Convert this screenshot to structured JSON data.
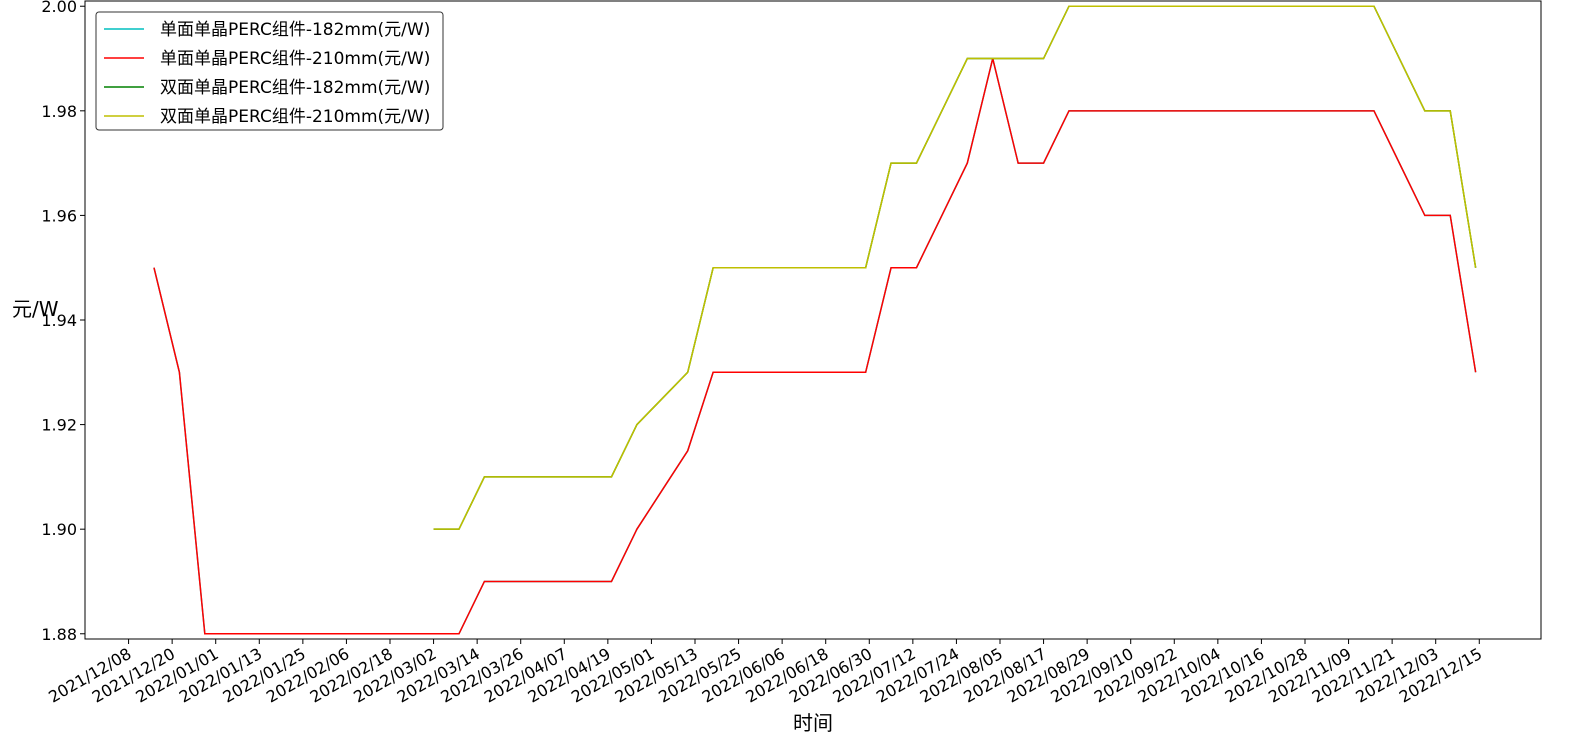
{
  "chart_data": {
    "type": "line",
    "xlabel": "时间",
    "ylabel": "元/W",
    "x": [
      "2021/12/15",
      "2021/12/22",
      "2021/12/29",
      "2022/01/05",
      "2022/01/12",
      "2022/01/19",
      "2022/01/26",
      "2022/02/02",
      "2022/02/09",
      "2022/02/16",
      "2022/02/23",
      "2022/03/02",
      "2022/03/09",
      "2022/03/16",
      "2022/03/23",
      "2022/03/30",
      "2022/04/06",
      "2022/04/13",
      "2022/04/20",
      "2022/04/27",
      "2022/05/04",
      "2022/05/11",
      "2022/05/18",
      "2022/05/25",
      "2022/06/01",
      "2022/06/08",
      "2022/06/15",
      "2022/06/22",
      "2022/06/29",
      "2022/07/06",
      "2022/07/13",
      "2022/07/20",
      "2022/07/27",
      "2022/08/03",
      "2022/08/10",
      "2022/08/17",
      "2022/08/24",
      "2022/08/31",
      "2022/09/07",
      "2022/09/14",
      "2022/09/21",
      "2022/09/28",
      "2022/10/05",
      "2022/10/12",
      "2022/10/19",
      "2022/10/26",
      "2022/11/02",
      "2022/11/09",
      "2022/11/16",
      "2022/11/23",
      "2022/11/30",
      "2022/12/07",
      "2022/12/14"
    ],
    "series": [
      {
        "name": "单面单晶PERC组件-182mm(元/W)",
        "color": "#00bfbf",
        "values": [
          1.95,
          1.93,
          1.88,
          1.88,
          1.88,
          1.88,
          1.88,
          1.88,
          1.88,
          1.88,
          1.88,
          1.88,
          1.88,
          1.89,
          1.89,
          1.89,
          1.89,
          1.89,
          1.89,
          1.9,
          1.9075,
          1.915,
          1.93,
          1.93,
          1.93,
          1.93,
          1.93,
          1.93,
          1.93,
          1.95,
          1.95,
          1.96,
          1.97,
          1.99,
          1.97,
          1.97,
          1.98,
          1.98,
          1.98,
          1.98,
          1.98,
          1.98,
          1.98,
          1.98,
          1.98,
          1.98,
          1.98,
          1.98,
          1.98,
          1.97,
          1.96,
          1.96,
          1.93
        ]
      },
      {
        "name": "单面单晶PERC组件-210mm(元/W)",
        "color": "#ff0000",
        "values": [
          1.95,
          1.93,
          1.88,
          1.88,
          1.88,
          1.88,
          1.88,
          1.88,
          1.88,
          1.88,
          1.88,
          1.88,
          1.88,
          1.89,
          1.89,
          1.89,
          1.89,
          1.89,
          1.89,
          1.9,
          1.9075,
          1.915,
          1.93,
          1.93,
          1.93,
          1.93,
          1.93,
          1.93,
          1.93,
          1.95,
          1.95,
          1.96,
          1.97,
          1.99,
          1.97,
          1.97,
          1.98,
          1.98,
          1.98,
          1.98,
          1.98,
          1.98,
          1.98,
          1.98,
          1.98,
          1.98,
          1.98,
          1.98,
          1.98,
          1.97,
          1.96,
          1.96,
          1.93
        ]
      },
      {
        "name": "双面单晶PERC组件-182mm(元/W)",
        "color": "#008000",
        "values": [
          null,
          null,
          null,
          null,
          null,
          null,
          null,
          null,
          null,
          null,
          null,
          1.9,
          1.9,
          1.91,
          1.91,
          1.91,
          1.91,
          1.91,
          1.91,
          1.92,
          1.925,
          1.93,
          1.95,
          1.95,
          1.95,
          1.95,
          1.95,
          1.95,
          1.95,
          1.97,
          1.97,
          1.98,
          1.99,
          1.99,
          1.99,
          1.99,
          2.0,
          2.0,
          2.0,
          2.0,
          2.0,
          2.0,
          2.0,
          2.0,
          2.0,
          2.0,
          2.0,
          2.0,
          2.0,
          1.99,
          1.98,
          1.98,
          1.95
        ]
      },
      {
        "name": "双面单晶PERC组件-210mm(元/W)",
        "color": "#bfbf00",
        "values": [
          null,
          null,
          null,
          null,
          null,
          null,
          null,
          null,
          null,
          null,
          null,
          1.9,
          1.9,
          1.91,
          1.91,
          1.91,
          1.91,
          1.91,
          1.91,
          1.92,
          1.925,
          1.93,
          1.95,
          1.95,
          1.95,
          1.95,
          1.95,
          1.95,
          1.95,
          1.97,
          1.97,
          1.98,
          1.99,
          1.99,
          1.99,
          1.99,
          2.0,
          2.0,
          2.0,
          2.0,
          2.0,
          2.0,
          2.0,
          2.0,
          2.0,
          2.0,
          2.0,
          2.0,
          2.0,
          1.99,
          1.98,
          1.98,
          1.95
        ]
      }
    ],
    "xlim": [
      "2021/11/26",
      "2023/01/01"
    ],
    "xticks": [
      "2021/12/08",
      "2021/12/20",
      "2022/01/01",
      "2022/01/13",
      "2022/01/25",
      "2022/02/06",
      "2022/02/18",
      "2022/03/02",
      "2022/03/14",
      "2022/03/26",
      "2022/04/07",
      "2022/04/19",
      "2022/05/01",
      "2022/05/13",
      "2022/05/25",
      "2022/06/06",
      "2022/06/18",
      "2022/06/30",
      "2022/07/12",
      "2022/07/24",
      "2022/08/05",
      "2022/08/17",
      "2022/08/29",
      "2022/09/10",
      "2022/09/22",
      "2022/10/04",
      "2022/10/16",
      "2022/10/28",
      "2022/11/09",
      "2022/11/21",
      "2022/12/03",
      "2022/12/15"
    ],
    "ylim": [
      1.879,
      2.001
    ],
    "yticks": [
      1.88,
      {
        "value": 1.9,
        "label": "1.90"
      },
      1.92,
      1.94,
      1.96,
      1.98,
      {
        "value": 2.0,
        "label": "2.00"
      }
    ],
    "legend": "upper left"
  }
}
